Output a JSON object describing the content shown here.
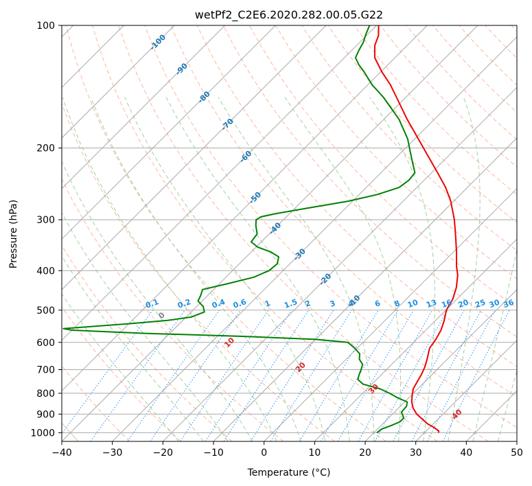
{
  "colors": {
    "temperature": "#ee0000",
    "dewpoint": "#008000",
    "isotherm": "#a9a9a9",
    "isotherm_label": "#1f77b4",
    "dry_adiabat": "#ff9c7a",
    "moist_adiabat": "#90c890",
    "mixing_ratio": "#1e90ff",
    "mixing_ratio_label": "#1e8fe0",
    "theta_label": "#d62728",
    "zero_theta_label": "#808080",
    "outer_curve": "#d2b48c"
  },
  "chart_data": {
    "type": "line",
    "subtype": "skew-T log-P diagram",
    "title": "wetPf2_C2E6.2020.282.00.05.G22",
    "xlabel": "Temperature (°C)",
    "ylabel": "Pressure (hPa)",
    "xlim": [
      -40,
      50
    ],
    "ylim": [
      1050,
      100
    ],
    "y_scale": "log",
    "grid": true,
    "x_ticks": [
      "−40",
      "−30",
      "−20",
      "−10",
      "0",
      "10",
      "20",
      "30",
      "40",
      "50"
    ],
    "x_tick_values": [
      -40,
      -30,
      -20,
      -10,
      0,
      10,
      20,
      30,
      40,
      50
    ],
    "y_ticks": [
      "100",
      "200",
      "300",
      "400",
      "500",
      "600",
      "700",
      "800",
      "900",
      "1000"
    ],
    "y_tick_values": [
      100,
      200,
      300,
      400,
      500,
      600,
      700,
      800,
      900,
      1000
    ],
    "series": [
      {
        "key": "temperature",
        "points": [
          [
            1000,
            32.8
          ],
          [
            990,
            32.5
          ],
          [
            970,
            30.8
          ],
          [
            950,
            28.8
          ],
          [
            925,
            26.8
          ],
          [
            900,
            24.8
          ],
          [
            870,
            22.9
          ],
          [
            840,
            21.4
          ],
          [
            810,
            20.2
          ],
          [
            780,
            19.1
          ],
          [
            750,
            18.5
          ],
          [
            720,
            17.9
          ],
          [
            690,
            17.1
          ],
          [
            660,
            16.0
          ],
          [
            620,
            14.3
          ],
          [
            590,
            13.8
          ],
          [
            560,
            13.0
          ],
          [
            530,
            11.7
          ],
          [
            500,
            10.1
          ],
          [
            470,
            9.2
          ],
          [
            440,
            7.6
          ],
          [
            410,
            5.4
          ],
          [
            390,
            3.4
          ],
          [
            360,
            0.6
          ],
          [
            330,
            -2.6
          ],
          [
            300,
            -6.2
          ],
          [
            270,
            -10.6
          ],
          [
            250,
            -14.3
          ],
          [
            230,
            -18.8
          ],
          [
            210,
            -23.8
          ],
          [
            190,
            -29.3
          ],
          [
            170,
            -35.4
          ],
          [
            150,
            -41.9
          ],
          [
            140,
            -45.5
          ],
          [
            130,
            -49.8
          ],
          [
            120,
            -54.0
          ],
          [
            112,
            -56.4
          ],
          [
            106,
            -57.6
          ],
          [
            100,
            -59.6
          ]
        ]
      },
      {
        "key": "dewpoint",
        "points": [
          [
            1000,
            20.6
          ],
          [
            980,
            20.8
          ],
          [
            960,
            22.0
          ],
          [
            940,
            23.0
          ],
          [
            920,
            23.0
          ],
          [
            890,
            21.4
          ],
          [
            860,
            21.2
          ],
          [
            840,
            20.5
          ],
          [
            820,
            17.7
          ],
          [
            800,
            15.3
          ],
          [
            780,
            12.5
          ],
          [
            760,
            8.3
          ],
          [
            740,
            6.3
          ],
          [
            720,
            5.6
          ],
          [
            700,
            5.0
          ],
          [
            680,
            4.3
          ],
          [
            660,
            2.6
          ],
          [
            640,
            1.6
          ],
          [
            620,
            -0.5
          ],
          [
            600,
            -3.0
          ],
          [
            590,
            -10.0
          ],
          [
            580,
            -25.0
          ],
          [
            570,
            -45.0
          ],
          [
            560,
            -60.0
          ],
          [
            555,
            -62.0
          ],
          [
            550,
            -58.0
          ],
          [
            540,
            -50.0
          ],
          [
            530,
            -43.0
          ],
          [
            520,
            -39.0
          ],
          [
            505,
            -37.4
          ],
          [
            490,
            -38.7
          ],
          [
            475,
            -40.8
          ],
          [
            460,
            -41.4
          ],
          [
            445,
            -42.2
          ],
          [
            430,
            -38.2
          ],
          [
            415,
            -34.5
          ],
          [
            400,
            -32.8
          ],
          [
            385,
            -32.5
          ],
          [
            370,
            -33.6
          ],
          [
            360,
            -36.1
          ],
          [
            350,
            -39.7
          ],
          [
            340,
            -42.0
          ],
          [
            325,
            -42.4
          ],
          [
            310,
            -44.3
          ],
          [
            300,
            -45.4
          ],
          [
            295,
            -45.0
          ],
          [
            290,
            -42.8
          ],
          [
            280,
            -37.0
          ],
          [
            270,
            -30.8
          ],
          [
            260,
            -26.4
          ],
          [
            250,
            -23.5
          ],
          [
            240,
            -23.0
          ],
          [
            230,
            -23.3
          ],
          [
            210,
            -27.2
          ],
          [
            190,
            -31.4
          ],
          [
            170,
            -37.0
          ],
          [
            150,
            -44.5
          ],
          [
            140,
            -49.1
          ],
          [
            130,
            -53.3
          ],
          [
            125,
            -55.7
          ],
          [
            120,
            -57.8
          ],
          [
            115,
            -58.6
          ],
          [
            110,
            -59.3
          ],
          [
            105,
            -60.4
          ],
          [
            100,
            -61.4
          ]
        ]
      }
    ],
    "mixing_ratio_labels": [
      "0.1",
      "0.2",
      "0.4",
      "0.6",
      "1",
      "1.5",
      "2",
      "3",
      "4",
      "6",
      "8",
      "10",
      "13",
      "16",
      "20",
      "25",
      "30",
      "36"
    ],
    "isotherm_labels": [
      "-100",
      "-90",
      "-80",
      "-70",
      "-60",
      "-50",
      "-40",
      "-30",
      "-20",
      "-10"
    ],
    "theta_labels": [
      "0",
      "10",
      "20",
      "30",
      "40"
    ]
  }
}
